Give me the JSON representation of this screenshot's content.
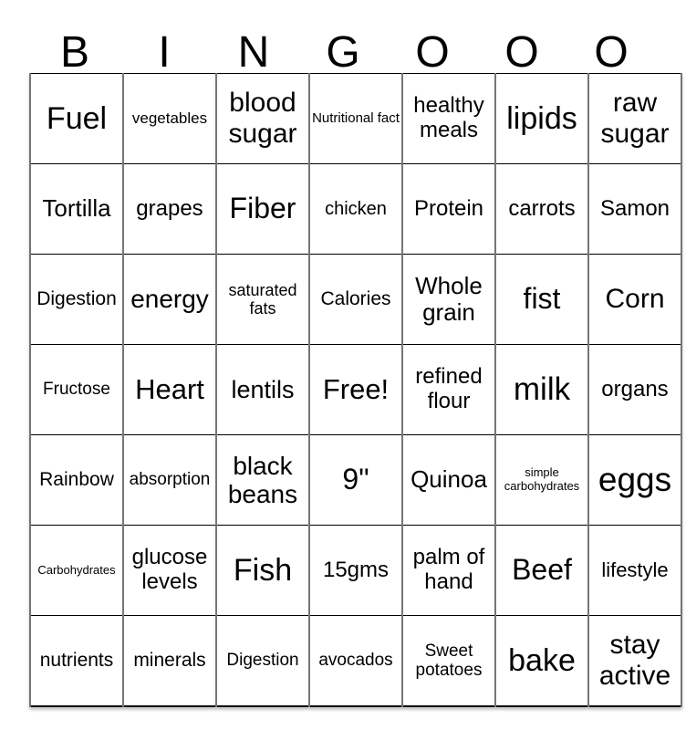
{
  "title": {
    "letters": [
      "B",
      "I",
      "N",
      "G",
      "O",
      "O",
      "O"
    ]
  },
  "grid": {
    "rows": [
      [
        "Fuel",
        "vegetables",
        "blood sugar",
        "Nutritional fact",
        "healthy meals",
        "lipids",
        "raw sugar"
      ],
      [
        "Tortilla",
        "grapes",
        "Fiber",
        "chicken",
        "Protein",
        "carrots",
        "Samon"
      ],
      [
        "Digestion",
        "energy",
        "saturated fats",
        "Calories",
        "Whole grain",
        "fist",
        "Corn"
      ],
      [
        "Fructose",
        "Heart",
        "lentils",
        "Free!",
        "refined flour",
        "milk",
        "organs"
      ],
      [
        "Rainbow",
        "absorption",
        "black beans",
        "9\"",
        "Quinoa",
        "simple carbohydrates",
        "eggs"
      ],
      [
        "Carbohydrates",
        "glucose levels",
        "Fish",
        "15gms",
        "palm of hand",
        "Beef",
        "lifestyle"
      ],
      [
        "nutrients",
        "minerals",
        "Digestion",
        "avocados",
        "Sweet potatoes",
        "bake",
        "stay active"
      ]
    ],
    "free_cell": "Free!"
  },
  "colors": {
    "background": "#ffffff",
    "text": "#000000",
    "grid_line_vertical": "#757575",
    "grid_line_horizontal": "#000000"
  }
}
